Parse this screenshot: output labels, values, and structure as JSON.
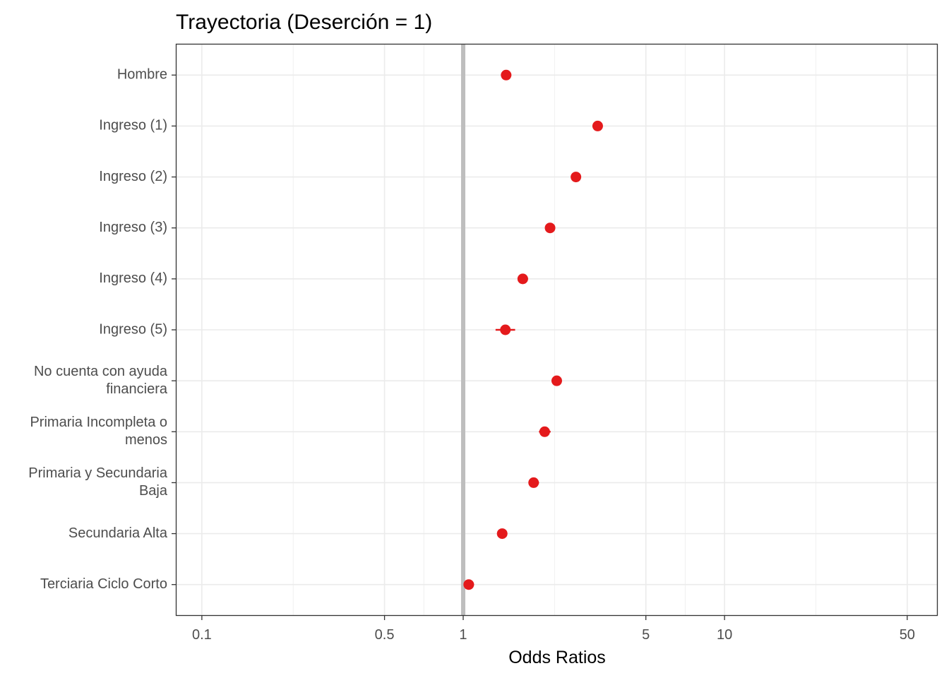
{
  "chart_data": {
    "type": "scatter",
    "title": "Trayectoria (Deserción = 1)",
    "xlabel": "Odds Ratios",
    "ylabel": "",
    "x_scale": "log",
    "xlim": [
      0.08,
      65
    ],
    "x_ticks": [
      {
        "value": 0.1,
        "label": "0.1"
      },
      {
        "value": 0.5,
        "label": "0.5"
      },
      {
        "value": 1,
        "label": "1"
      },
      {
        "value": 5,
        "label": "5"
      },
      {
        "value": 10,
        "label": "10"
      },
      {
        "value": 50,
        "label": "50"
      }
    ],
    "reference_line": 1,
    "grid": true,
    "point_color": "#e41a1c",
    "reference_color": "#bebebe",
    "points": [
      {
        "label": [
          "Hombre"
        ],
        "value": 1.46,
        "ci": [
          1.42,
          1.5
        ]
      },
      {
        "label": [
          "Ingreso (1)"
        ],
        "value": 3.27,
        "ci": [
          3.18,
          3.36
        ]
      },
      {
        "label": [
          "Ingreso (2)"
        ],
        "value": 2.7,
        "ci": [
          2.63,
          2.78
        ]
      },
      {
        "label": [
          "Ingreso (3)"
        ],
        "value": 2.15,
        "ci": [
          2.08,
          2.22
        ]
      },
      {
        "label": [
          "Ingreso (4)"
        ],
        "value": 1.69,
        "ci": [
          1.62,
          1.77
        ]
      },
      {
        "label": [
          "Ingreso (5)"
        ],
        "value": 1.45,
        "ci": [
          1.33,
          1.58
        ]
      },
      {
        "label": [
          "No cuenta con ayuda",
          "financiera"
        ],
        "value": 2.28,
        "ci": [
          2.22,
          2.35
        ]
      },
      {
        "label": [
          "Primaria Incompleta o",
          "menos"
        ],
        "value": 2.05,
        "ci": [
          1.95,
          2.16
        ]
      },
      {
        "label": [
          "Primaria y Secundaria",
          "Baja"
        ],
        "value": 1.86,
        "ci": [
          1.78,
          1.95
        ]
      },
      {
        "label": [
          "Secundaria Alta"
        ],
        "value": 1.41,
        "ci": [
          1.37,
          1.46
        ]
      },
      {
        "label": [
          "Terciaria Ciclo Corto"
        ],
        "value": 1.05,
        "ci": [
          1.01,
          1.1
        ]
      }
    ]
  }
}
